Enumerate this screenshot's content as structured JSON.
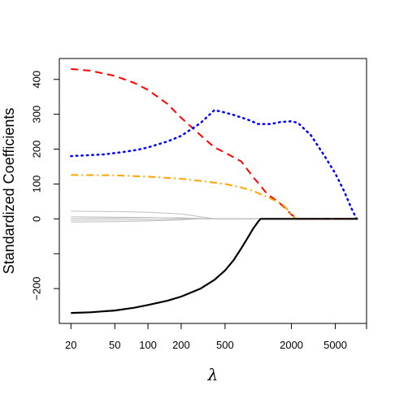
{
  "chart_data": {
    "type": "line",
    "title": "",
    "xlabel": "λ",
    "ylabel": "Standardized Coefficients",
    "x_scale": "log",
    "xlim": [
      15.7,
      9600
    ],
    "ylim": [
      -300,
      460
    ],
    "x_ticks": [
      20,
      50,
      100,
      200,
      500,
      2000,
      5000
    ],
    "x_tick_labels": [
      "20",
      "50",
      "100",
      "200",
      "500",
      "2000",
      "5000"
    ],
    "y_ticks": [
      -200,
      0,
      100,
      200,
      300,
      400
    ],
    "y_tick_labels": [
      "−200",
      "0",
      "100",
      "200",
      "300",
      "400"
    ],
    "grid": false,
    "legend": "none",
    "series": [
      {
        "color": "#ff0000",
        "style": "dashed",
        "width": 2,
        "points": [
          [
            20,
            430
          ],
          [
            30,
            425
          ],
          [
            50,
            410
          ],
          [
            75,
            390
          ],
          [
            100,
            370
          ],
          [
            150,
            330
          ],
          [
            200,
            290
          ],
          [
            300,
            240
          ],
          [
            400,
            205
          ],
          [
            500,
            190
          ],
          [
            700,
            165
          ],
          [
            900,
            120
          ],
          [
            1200,
            72
          ],
          [
            1500,
            50
          ],
          [
            1700,
            35
          ],
          [
            2000,
            12
          ],
          [
            2300,
            0
          ],
          [
            8000,
            0
          ]
        ]
      },
      {
        "color": "#0000ff",
        "style": "dotted",
        "width": 2.5,
        "points": [
          [
            20,
            180
          ],
          [
            40,
            185
          ],
          [
            60,
            192
          ],
          [
            80,
            198
          ],
          [
            100,
            205
          ],
          [
            150,
            222
          ],
          [
            200,
            238
          ],
          [
            300,
            275
          ],
          [
            400,
            312
          ],
          [
            500,
            305
          ],
          [
            600,
            298
          ],
          [
            800,
            285
          ],
          [
            1000,
            272
          ],
          [
            1300,
            272
          ],
          [
            1600,
            278
          ],
          [
            2000,
            280
          ],
          [
            2300,
            275
          ],
          [
            3000,
            240
          ],
          [
            4000,
            180
          ],
          [
            5000,
            130
          ],
          [
            6000,
            80
          ],
          [
            7000,
            30
          ],
          [
            7800,
            0
          ]
        ]
      },
      {
        "color": "#ffa500",
        "style": "dashdot",
        "width": 2,
        "points": [
          [
            20,
            126
          ],
          [
            50,
            125
          ],
          [
            100,
            121
          ],
          [
            200,
            115
          ],
          [
            300,
            109
          ],
          [
            500,
            100
          ],
          [
            700,
            90
          ],
          [
            900,
            80
          ],
          [
            1100,
            68
          ],
          [
            1300,
            58
          ],
          [
            1600,
            45
          ],
          [
            1800,
            30
          ],
          [
            2000,
            12
          ],
          [
            2200,
            0
          ],
          [
            8000,
            0
          ]
        ]
      },
      {
        "color": "#000000",
        "style": "solid",
        "width": 2.2,
        "points": [
          [
            20,
            -270
          ],
          [
            30,
            -268
          ],
          [
            50,
            -263
          ],
          [
            75,
            -255
          ],
          [
            100,
            -247
          ],
          [
            150,
            -235
          ],
          [
            200,
            -223
          ],
          [
            300,
            -200
          ],
          [
            400,
            -175
          ],
          [
            500,
            -148
          ],
          [
            600,
            -118
          ],
          [
            700,
            -85
          ],
          [
            800,
            -55
          ],
          [
            900,
            -28
          ],
          [
            1000,
            -8
          ],
          [
            1050,
            0
          ],
          [
            8000,
            0
          ]
        ]
      },
      {
        "color": "#bebebe",
        "style": "solid",
        "width": 1,
        "points": [
          [
            20,
            22
          ],
          [
            50,
            21
          ],
          [
            100,
            19
          ],
          [
            200,
            14
          ],
          [
            300,
            6
          ],
          [
            400,
            0
          ],
          [
            8000,
            0
          ]
        ]
      },
      {
        "color": "#bebebe",
        "style": "solid",
        "width": 1,
        "points": [
          [
            20,
            6
          ],
          [
            50,
            5
          ],
          [
            100,
            4
          ],
          [
            200,
            2
          ],
          [
            300,
            1
          ],
          [
            400,
            0
          ],
          [
            8000,
            0
          ]
        ]
      },
      {
        "color": "#bebebe",
        "style": "solid",
        "width": 1,
        "points": [
          [
            20,
            1
          ],
          [
            50,
            2
          ],
          [
            100,
            3
          ],
          [
            200,
            3
          ],
          [
            300,
            1
          ],
          [
            400,
            0
          ],
          [
            8000,
            0
          ]
        ]
      },
      {
        "color": "#bebebe",
        "style": "solid",
        "width": 1,
        "points": [
          [
            20,
            -4
          ],
          [
            50,
            -3
          ],
          [
            100,
            -2
          ],
          [
            200,
            -1
          ],
          [
            300,
            0
          ],
          [
            8000,
            0
          ]
        ]
      },
      {
        "color": "#bebebe",
        "style": "solid",
        "width": 1,
        "points": [
          [
            20,
            -9
          ],
          [
            50,
            -8
          ],
          [
            100,
            -6
          ],
          [
            200,
            -3
          ],
          [
            300,
            0
          ],
          [
            8000,
            0
          ]
        ]
      }
    ]
  }
}
